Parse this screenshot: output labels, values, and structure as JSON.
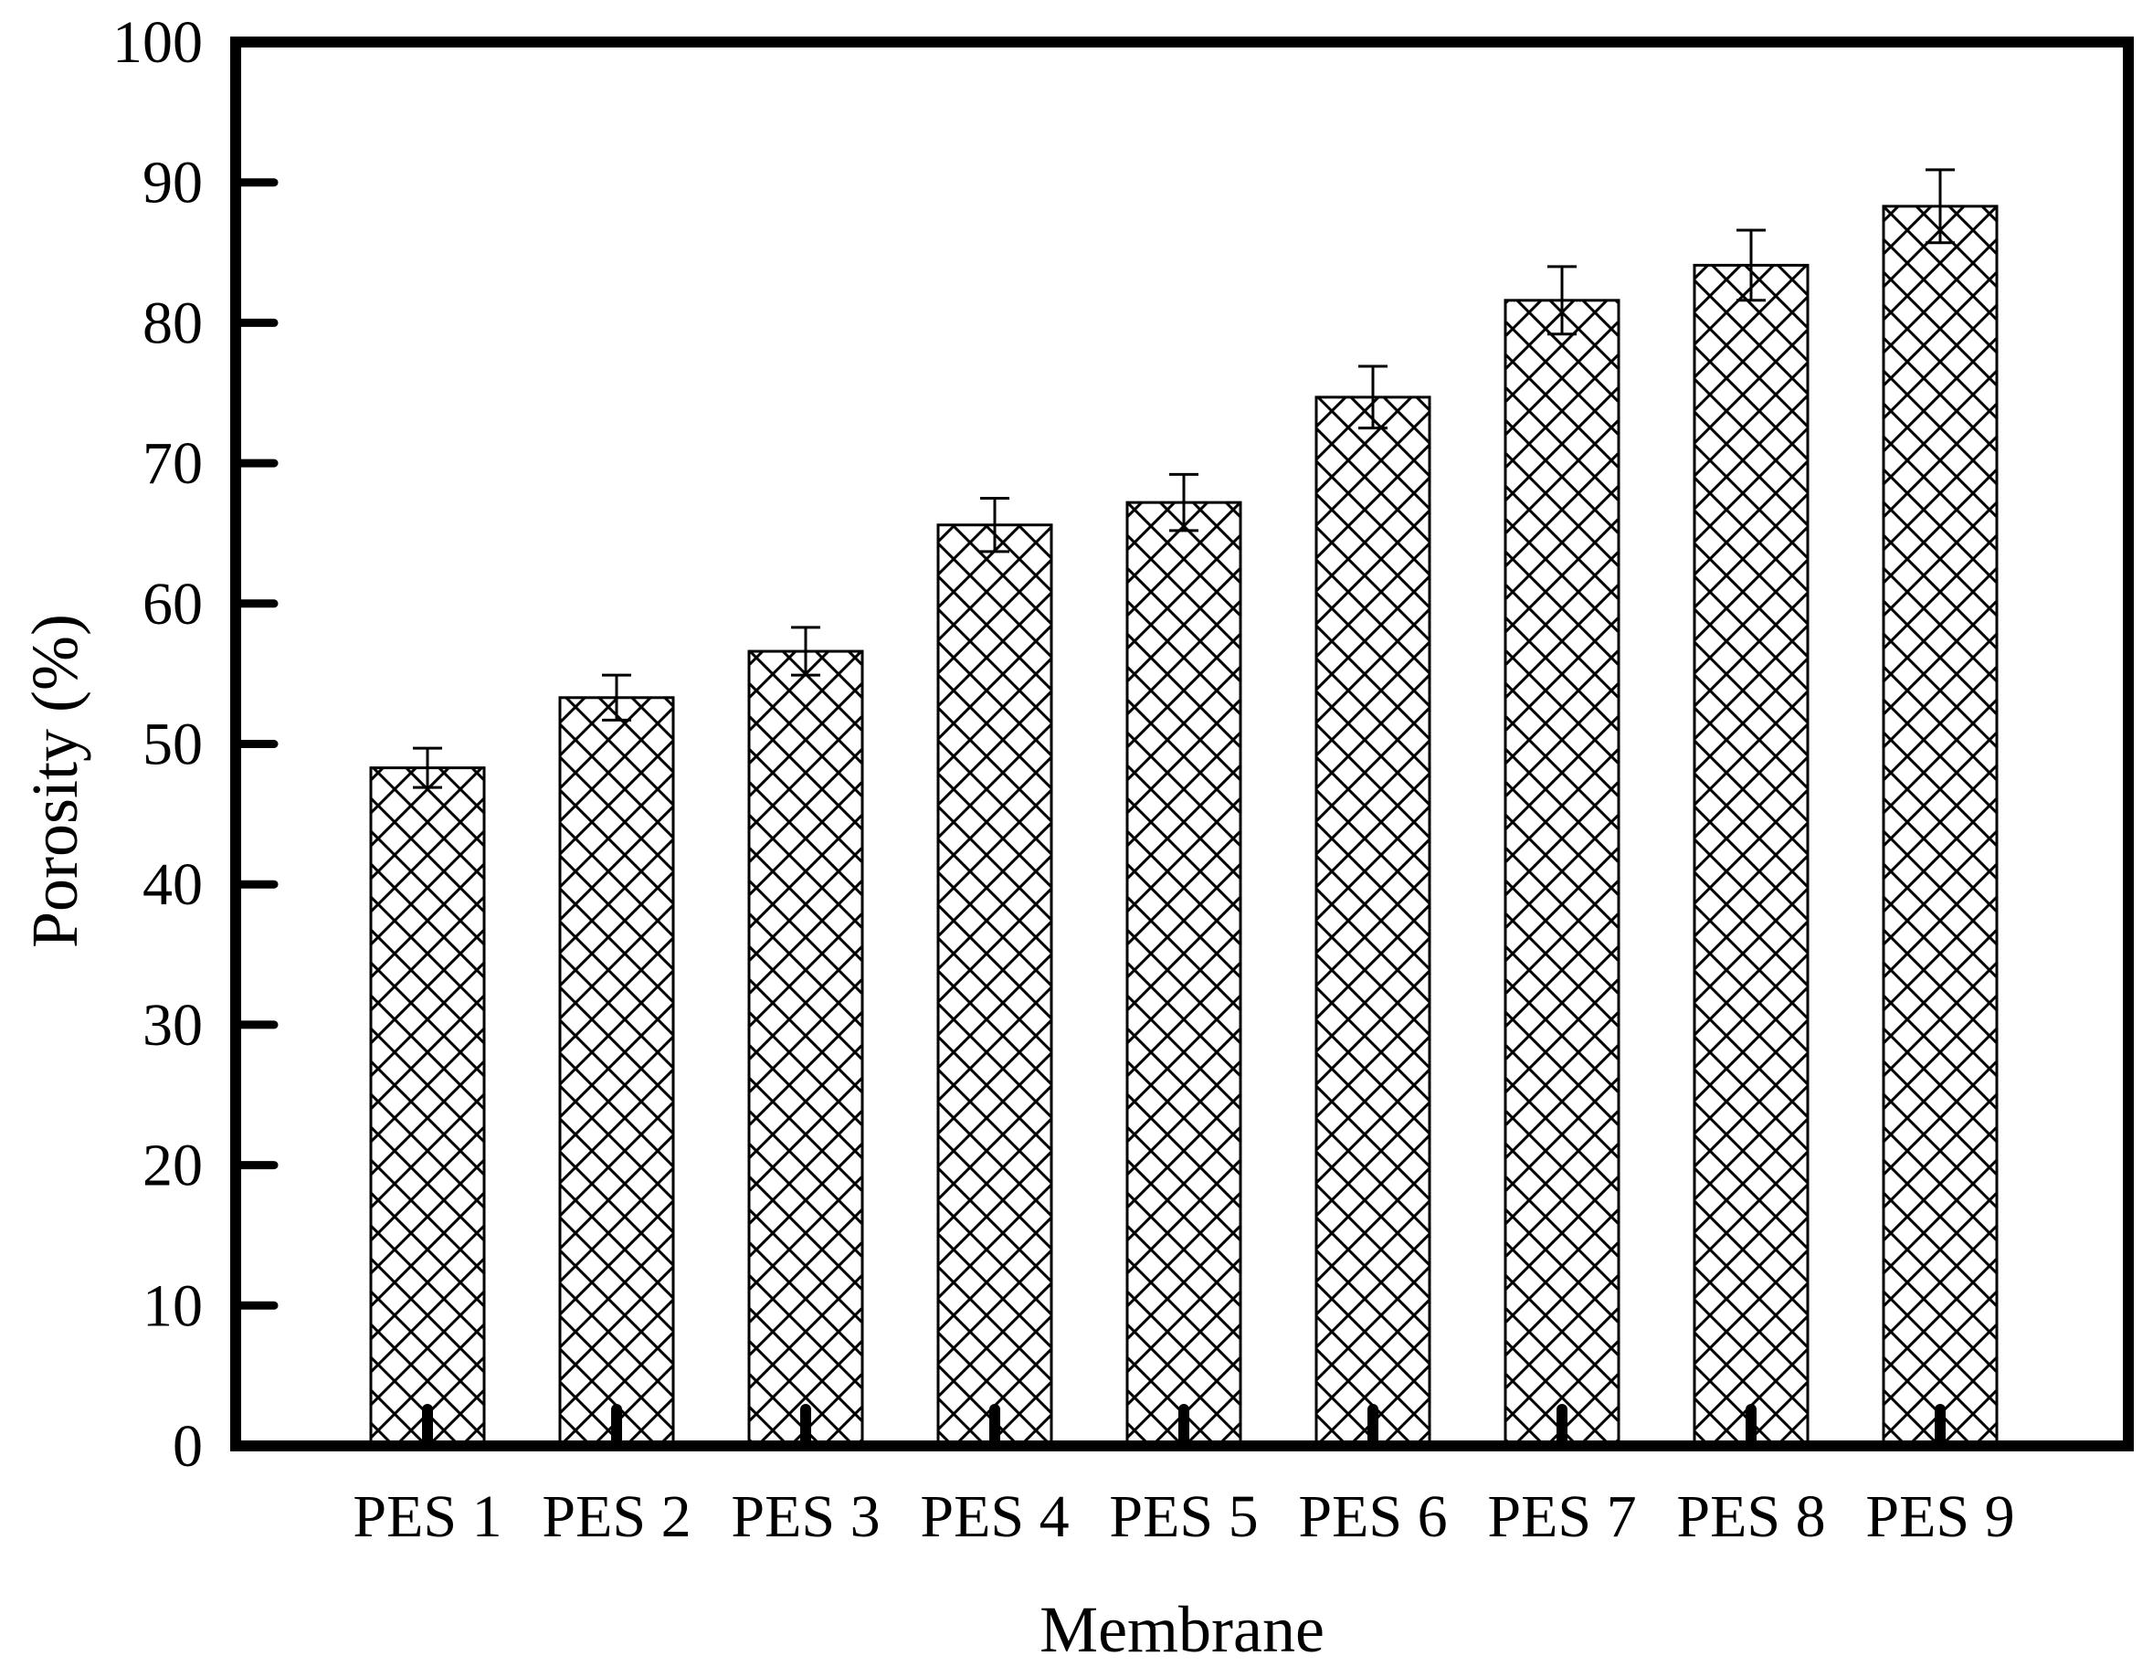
{
  "chart_data": {
    "type": "bar",
    "title": "",
    "xlabel": "Membrane",
    "ylabel": "Porosity (%)",
    "ylim": [
      0,
      100
    ],
    "yticks": [
      0,
      10,
      20,
      30,
      40,
      50,
      60,
      70,
      80,
      90,
      100
    ],
    "grid": false,
    "legend": "none",
    "categories": [
      "PES 1",
      "PES 2",
      "PES 3",
      "PES 4",
      "PES 5",
      "PES 6",
      "PES 7",
      "PES 8",
      "PES 9"
    ],
    "values": [
      48.3,
      53.3,
      56.6,
      65.6,
      67.2,
      74.7,
      81.6,
      84.1,
      88.3
    ],
    "errors": [
      1.4,
      1.6,
      1.7,
      1.9,
      2.0,
      2.2,
      2.4,
      2.5,
      2.6
    ],
    "bar_pattern": "crosshatch",
    "colors": {
      "bar_fill": "#ffffff",
      "bar_stroke": "#000000",
      "axis": "#000000"
    }
  }
}
